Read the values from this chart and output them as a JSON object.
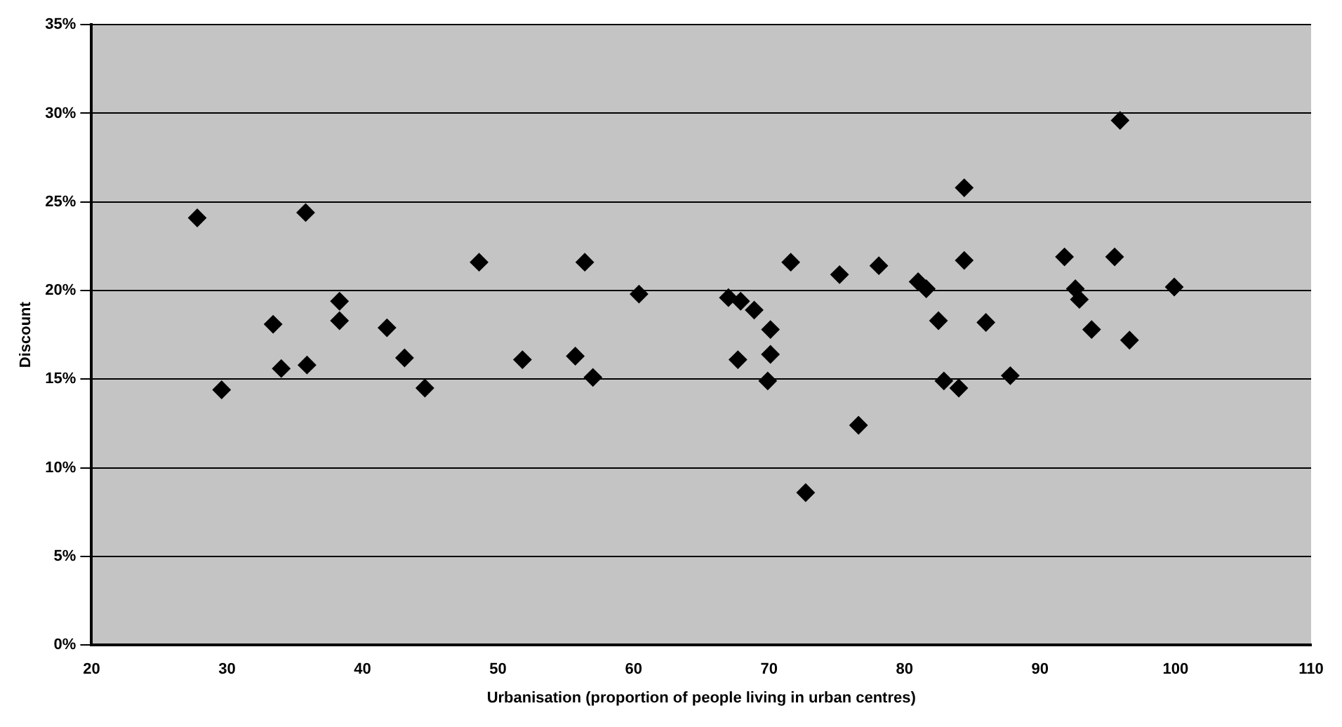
{
  "chart_data": {
    "type": "scatter",
    "xlabel": "Urbanisation (proportion of people living in urban centres)",
    "ylabel": "Discount",
    "series": [
      {
        "color": "#000000",
        "x": [
          27.8,
          35.8,
          48.6,
          38.3,
          38.3,
          33.4,
          41.8,
          43.1,
          34.0,
          35.9,
          29.6,
          44.6,
          56.4,
          71.6,
          75.2,
          78.1,
          60.4,
          67.0,
          67.9,
          68.9,
          70.1,
          51.8,
          55.7,
          57.0,
          67.7,
          70.1,
          69.9,
          76.6,
          72.7,
          84.4,
          84.4,
          91.8,
          95.5,
          81.0,
          81.6,
          92.6,
          92.9,
          99.9,
          82.5,
          86.0,
          93.8,
          96.6,
          82.9,
          84.0,
          87.8,
          95.9
        ],
        "values": [
          24.1,
          24.4,
          21.6,
          19.4,
          18.3,
          18.1,
          17.9,
          16.2,
          15.6,
          15.8,
          14.4,
          14.5,
          21.6,
          21.6,
          20.9,
          21.4,
          19.8,
          19.6,
          19.4,
          18.9,
          17.8,
          16.1,
          16.3,
          15.1,
          16.1,
          16.4,
          14.9,
          12.4,
          8.6,
          25.8,
          21.7,
          21.9,
          21.9,
          20.5,
          20.1,
          20.1,
          19.5,
          20.2,
          18.3,
          18.2,
          17.8,
          17.2,
          14.9,
          14.5,
          15.2,
          29.6
        ]
      }
    ],
    "xlim": [
      20,
      110
    ],
    "xticks": [
      20,
      30,
      40,
      50,
      60,
      70,
      80,
      90,
      100,
      110
    ],
    "ylim": [
      0,
      35
    ],
    "yticks": [
      {
        "value": 0,
        "label": "0%"
      },
      {
        "value": 5,
        "label": "5%"
      },
      {
        "value": 10,
        "label": "10%"
      },
      {
        "value": 15,
        "label": "15%"
      },
      {
        "value": 20,
        "label": "20%"
      },
      {
        "value": 25,
        "label": "25%"
      },
      {
        "value": 30,
        "label": "30%"
      },
      {
        "value": 35,
        "label": "35%"
      }
    ],
    "grid": "y",
    "marker": "diamond",
    "legend": false
  }
}
